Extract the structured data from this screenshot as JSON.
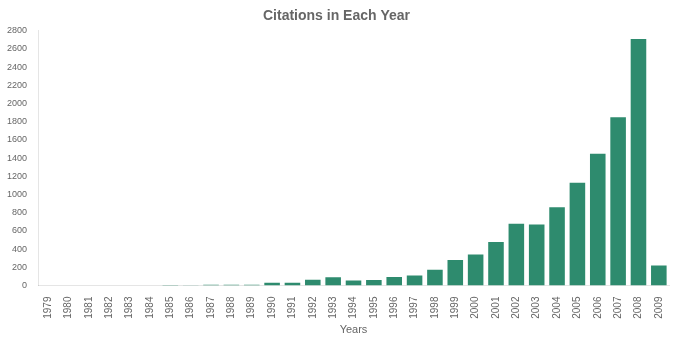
{
  "chart_data": {
    "type": "bar",
    "title": "Citations in Each Year",
    "xlabel": "Years",
    "categories": [
      "1979",
      "1980",
      "1981",
      "1982",
      "1983",
      "1984",
      "1985",
      "1986",
      "1987",
      "1988",
      "1989",
      "1990",
      "1991",
      "1992",
      "1993",
      "1994",
      "1995",
      "1996",
      "1997",
      "1998",
      "1999",
      "2000",
      "2001",
      "2002",
      "2003",
      "2004",
      "2005",
      "2006",
      "2007",
      "2008",
      "2009"
    ],
    "values": [
      0,
      0,
      0,
      0,
      0,
      0,
      5,
      2,
      8,
      10,
      10,
      30,
      30,
      65,
      90,
      55,
      60,
      95,
      110,
      175,
      280,
      340,
      480,
      680,
      670,
      860,
      1130,
      1450,
      1850,
      2710,
      220
    ],
    "color": "#2e8b6e",
    "ylim": [
      0,
      2800
    ],
    "yticks": [
      0,
      200,
      400,
      600,
      800,
      1000,
      1200,
      1400,
      1600,
      1800,
      2000,
      2200,
      2400,
      2600,
      2800
    ],
    "grid": false
  }
}
